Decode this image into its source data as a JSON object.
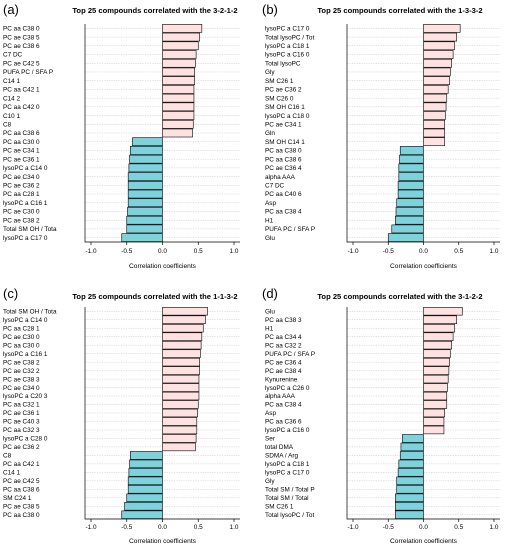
{
  "figure": {
    "panels": [
      {
        "letter": "(a)",
        "title": "Top 25 compounds correlated with the 3-2-1-2"
      },
      {
        "letter": "(b)",
        "title": "Top 25 compounds correlated with the 1-3-3-2"
      },
      {
        "letter": "(c)",
        "title": "Top 25 compounds correlated with the 1-1-3-2"
      },
      {
        "letter": "(d)",
        "title": "Top 25 compounds correlated with the 3-1-2-2"
      }
    ]
  },
  "colors": {
    "positive": "#fde2e1",
    "negative": "#7ed2dc",
    "grid": "#bdbdbd"
  },
  "chart_data": [
    {
      "type": "bar",
      "orientation": "horizontal",
      "title": "Top 25 compounds correlated with the 3-2-1-2",
      "xlabel": "Correlation coefficients",
      "ylabel": "",
      "xlim": [
        -1.0,
        1.0
      ],
      "xticks": [
        "-1.0",
        "-0.5",
        "0.0",
        "0.5",
        "1.0"
      ],
      "grid": true,
      "categories": [
        "PC aa C38 0",
        "PC ae C38 5",
        "PC ae C38 6",
        "C7 DC",
        "PC ae C42 5",
        "PUFA PC / SFA P",
        "C14 1",
        "PC aa C42 1",
        "C14 2",
        "PC aa C42 0",
        "C10 1",
        "C8",
        "PC aa C38 6",
        "PC aa C30 0",
        "PC ae C34 1",
        "PC ae C36 1",
        "lysoPC a C14 0",
        "PC ae C34 0",
        "PC ae C36 2",
        "PC aa C28 1",
        "lysoPC a C16 1",
        "PC ae C30 0",
        "PC ae C38 2",
        "Total SM OH / Tota",
        "lysoPC a C17 0"
      ],
      "values": [
        0.55,
        0.52,
        0.5,
        0.47,
        0.46,
        0.45,
        0.45,
        0.44,
        0.44,
        0.44,
        0.44,
        0.43,
        0.42,
        -0.42,
        -0.45,
        -0.46,
        -0.47,
        -0.48,
        -0.48,
        -0.48,
        -0.48,
        -0.49,
        -0.5,
        -0.5,
        -0.57
      ]
    },
    {
      "type": "bar",
      "orientation": "horizontal",
      "title": "Top 25 compounds correlated with the 1-3-3-2",
      "xlabel": "Correlation coefficients",
      "ylabel": "",
      "xlim": [
        -1.0,
        1.0
      ],
      "xticks": [
        "-1.0",
        "-0.5",
        "0.0",
        "0.5",
        "1.0"
      ],
      "grid": true,
      "categories": [
        "lysoPC a C17 0",
        "Total lysoPC / Tot",
        "lysoPC a C18 1",
        "lysoPC a C16 0",
        "Total lysoPC",
        "Gly",
        "SM C26 1",
        "PC ae C36 2",
        "SM C26 0",
        "SM OH C16 1",
        "lysoPC a C18 0",
        "PC ae C34 1",
        "Gln",
        "SM OH C14 1",
        "PC aa C38 0",
        "PC aa C38 6",
        "PC ae C36 4",
        "alpha AAA",
        "C7 DC",
        "PC aa C40 6",
        "Asp",
        "PC aa C38 4",
        "H1",
        "PUFA PC / SFA P",
        "Glu"
      ],
      "values": [
        0.52,
        0.47,
        0.44,
        0.42,
        0.4,
        0.38,
        0.37,
        0.35,
        0.33,
        0.32,
        0.31,
        0.3,
        0.3,
        0.3,
        -0.33,
        -0.34,
        -0.35,
        -0.35,
        -0.36,
        -0.36,
        -0.38,
        -0.39,
        -0.4,
        -0.45,
        -0.5
      ]
    },
    {
      "type": "bar",
      "orientation": "horizontal",
      "title": "Top 25 compounds correlated with the 1-1-3-2",
      "xlabel": "Correlation coefficients",
      "ylabel": "",
      "xlim": [
        -1.0,
        1.0
      ],
      "xticks": [
        "-1.0",
        "-0.5",
        "0.0",
        "0.5",
        "1.0"
      ],
      "grid": true,
      "categories": [
        "Total SM OH / Tota",
        "lysoPC a C14 0",
        "PC aa C28 1",
        "PC ae C30 0",
        "PC aa C30 0",
        "lysoPC a C16 1",
        "PC ae C38 2",
        "PC ae C32 2",
        "PC ae C38 3",
        "PC ae C34 0",
        "lysoPC a C20 3",
        "PC aa C32 1",
        "PC ae C36 1",
        "PC ae C40 3",
        "PC aa C32 3",
        "lysoPC a C28 0",
        "PC ae C36 2",
        "C8",
        "PC aa C42 1",
        "C14 1",
        "PC ae C42 5",
        "PC aa C38 6",
        "SM C24 1",
        "PC ae C38 5",
        "PC aa C38 0"
      ],
      "values": [
        0.63,
        0.6,
        0.57,
        0.55,
        0.54,
        0.53,
        0.52,
        0.52,
        0.51,
        0.51,
        0.51,
        0.5,
        0.49,
        0.48,
        0.48,
        0.47,
        0.46,
        -0.45,
        -0.46,
        -0.47,
        -0.48,
        -0.48,
        -0.5,
        -0.53,
        -0.57
      ]
    },
    {
      "type": "bar",
      "orientation": "horizontal",
      "title": "Top 25 compounds correlated with the 3-1-2-2",
      "xlabel": "Correlation coefficients",
      "ylabel": "",
      "xlim": [
        -1.0,
        1.0
      ],
      "xticks": [
        "-1.0",
        "-0.5",
        "0.0",
        "0.5",
        "1.0"
      ],
      "grid": true,
      "categories": [
        "Glu",
        "PC aa C38 3",
        "H1",
        "PC aa C34 4",
        "PC aa C32 2",
        "PUFA PC / SFA P",
        "PC ae C36 4",
        "PC ae C38 4",
        "Kynurenine",
        "lysoPC a C26 0",
        "alpha AAA",
        "PC aa C38 4",
        "Asp",
        "PC aa C36 6",
        "lysoPC a C16 0",
        "Ser",
        "total DMA",
        "SDMA / Arg",
        "lysoPC a C18 1",
        "lysoPC a C17 0",
        "Gly",
        "Total SM / Total P",
        "Total SM / Total",
        "SM C26 1",
        "Total lysoPC / Tot"
      ],
      "values": [
        0.55,
        0.47,
        0.44,
        0.42,
        0.4,
        0.38,
        0.37,
        0.36,
        0.35,
        0.34,
        0.33,
        0.33,
        0.3,
        0.29,
        0.29,
        -0.3,
        -0.32,
        -0.33,
        -0.35,
        -0.36,
        -0.38,
        -0.38,
        -0.4,
        -0.4,
        -0.4
      ]
    }
  ]
}
